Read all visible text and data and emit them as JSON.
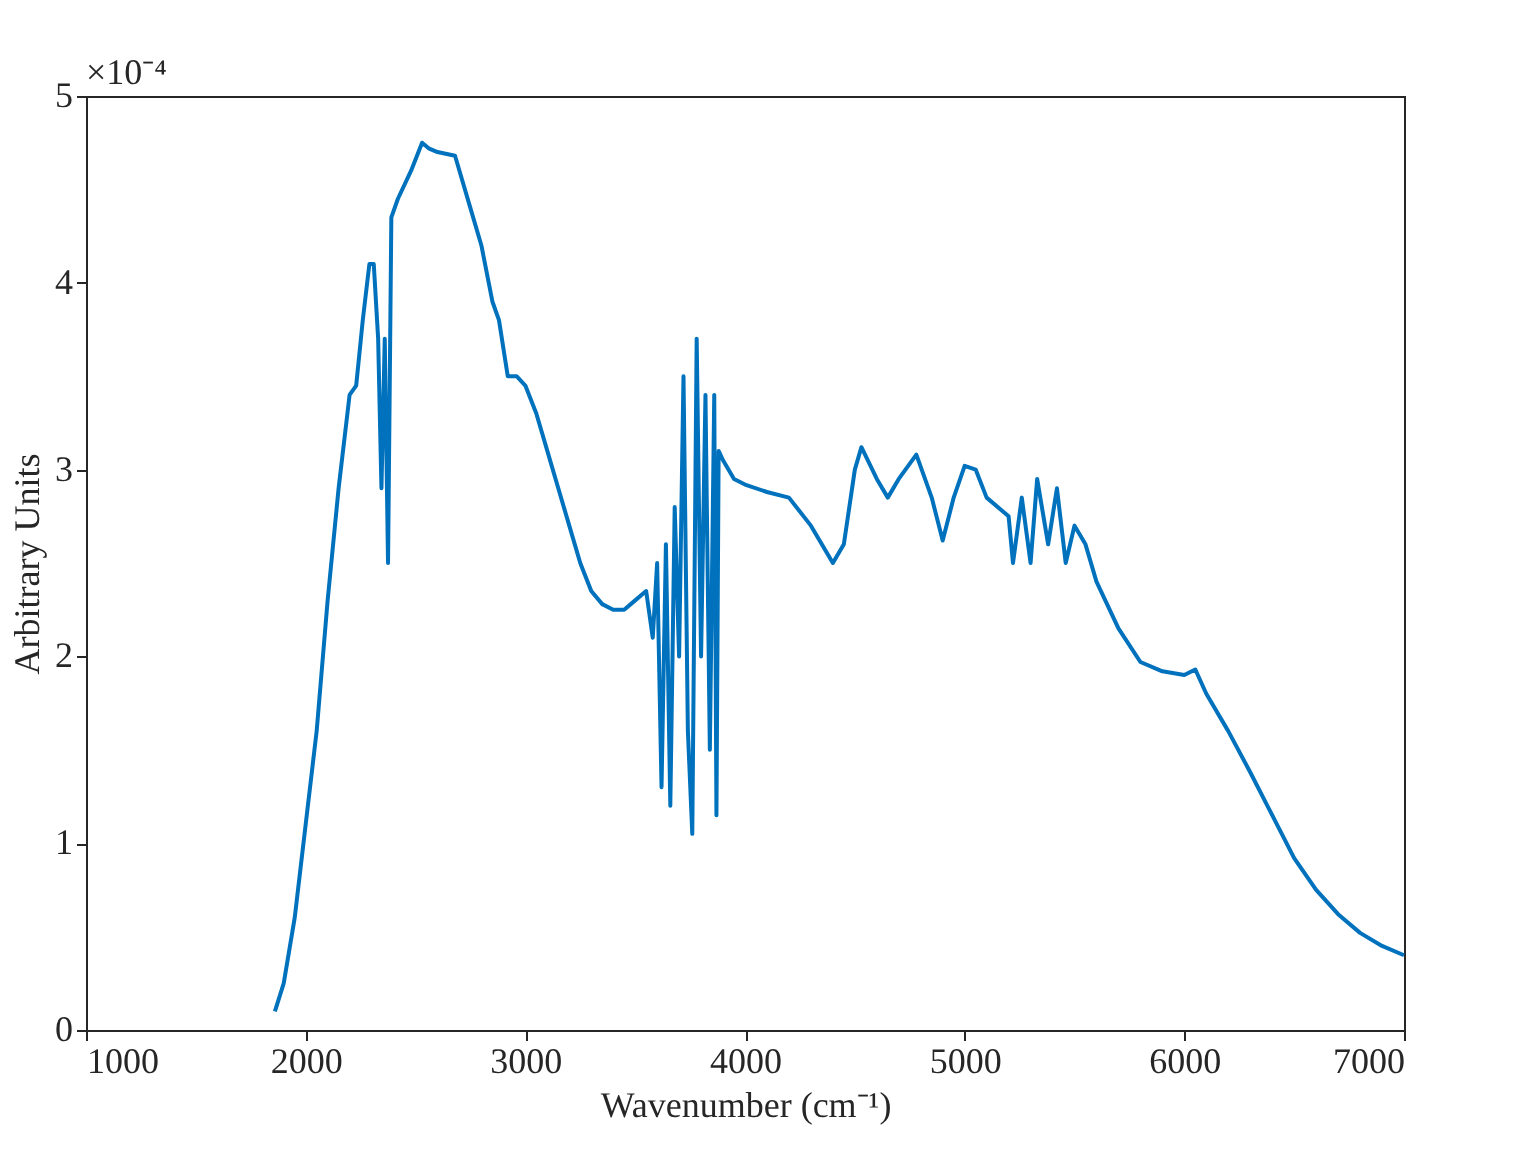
{
  "chart_data": {
    "type": "line",
    "xlabel": "Wavenumber (cm⁻¹)",
    "ylabel": "Arbitrary Units",
    "annotations": [
      "×10⁻⁴"
    ],
    "xlim": [
      1000,
      7000
    ],
    "xticks": [
      1000,
      2000,
      3000,
      4000,
      5000,
      6000,
      7000
    ],
    "ylim": [
      0,
      5
    ],
    "yticks": [
      0,
      1,
      2,
      3,
      4,
      5
    ],
    "grid": false,
    "series": [
      {
        "color": "#0072bd",
        "x": [
          1860,
          1900,
          1950,
          2000,
          2050,
          2100,
          2150,
          2200,
          2230,
          2260,
          2290,
          2310,
          2330,
          2345,
          2360,
          2375,
          2390,
          2420,
          2480,
          2530,
          2560,
          2600,
          2680,
          2700,
          2750,
          2800,
          2850,
          2880,
          2920,
          2960,
          3000,
          3050,
          3100,
          3150,
          3200,
          3250,
          3300,
          3350,
          3400,
          3450,
          3500,
          3550,
          3580,
          3600,
          3620,
          3640,
          3660,
          3680,
          3700,
          3720,
          3740,
          3760,
          3780,
          3800,
          3820,
          3840,
          3860,
          3870,
          3880,
          3900,
          3950,
          4000,
          4100,
          4200,
          4300,
          4400,
          4450,
          4500,
          4530,
          4600,
          4650,
          4700,
          4780,
          4850,
          4900,
          4950,
          5000,
          5050,
          5100,
          5200,
          5220,
          5260,
          5300,
          5330,
          5380,
          5420,
          5460,
          5500,
          5550,
          5600,
          5700,
          5800,
          5900,
          6000,
          6050,
          6100,
          6200,
          6300,
          6400,
          6500,
          6600,
          6700,
          6800,
          6900,
          7000
        ],
        "values": [
          0.1,
          0.25,
          0.6,
          1.1,
          1.6,
          2.3,
          2.9,
          3.4,
          3.45,
          3.8,
          4.1,
          4.1,
          3.7,
          2.9,
          3.7,
          2.5,
          4.35,
          4.45,
          4.6,
          4.75,
          4.72,
          4.7,
          4.68,
          4.6,
          4.4,
          4.2,
          3.9,
          3.8,
          3.5,
          3.5,
          3.45,
          3.3,
          3.1,
          2.9,
          2.7,
          2.5,
          2.35,
          2.28,
          2.25,
          2.25,
          2.3,
          2.35,
          2.1,
          2.5,
          1.3,
          2.6,
          1.2,
          2.8,
          2.0,
          3.5,
          1.6,
          1.05,
          3.7,
          2.0,
          3.4,
          1.5,
          3.4,
          1.15,
          3.1,
          3.05,
          2.95,
          2.92,
          2.88,
          2.85,
          2.7,
          2.5,
          2.6,
          3.0,
          3.12,
          2.95,
          2.85,
          2.95,
          3.08,
          2.85,
          2.62,
          2.85,
          3.02,
          3.0,
          2.85,
          2.75,
          2.5,
          2.85,
          2.5,
          2.95,
          2.6,
          2.9,
          2.5,
          2.7,
          2.6,
          2.4,
          2.15,
          1.97,
          1.92,
          1.9,
          1.93,
          1.8,
          1.6,
          1.38,
          1.15,
          0.92,
          0.75,
          0.62,
          0.52,
          0.45,
          0.4
        ]
      }
    ]
  }
}
